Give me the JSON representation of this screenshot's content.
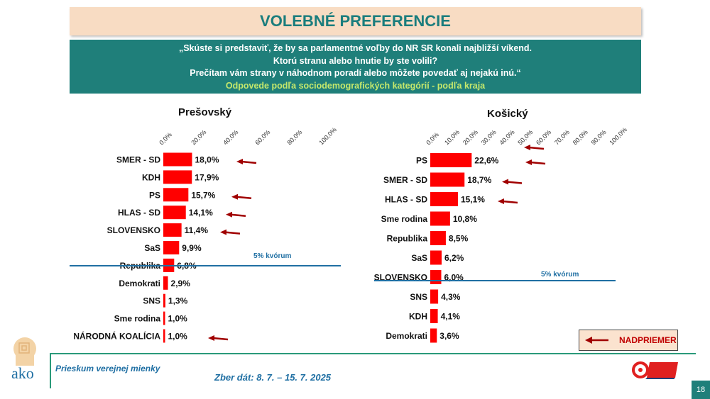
{
  "header": {
    "title": "VOLEBNÉ PREFERENCIE"
  },
  "question": {
    "line1": "„Skúste si predstaviť, že by sa parlamentné voľby do NR SR konali najbližší víkend.",
    "line2": "Ktorú stranu alebo hnutie by ste volili?",
    "line3": "Prečítam vám strany v náhodnom poradí alebo môžete povedať aj nejakú inú.“",
    "subtitle": "Odpovede podľa sociodemografických kategórií - podľa kraja"
  },
  "chart_data": [
    {
      "type": "bar",
      "orientation": "horizontal",
      "title": "Prešovský",
      "categories": [
        "SMER - SD",
        "KDH",
        "PS",
        "HLAS - SD",
        "SLOVENSKO",
        "SaS",
        "Republika",
        "Demokrati",
        "SNS",
        "Sme rodina",
        "NÁRODNÁ KOALÍCIA"
      ],
      "values": [
        18.0,
        17.9,
        15.7,
        14.1,
        11.4,
        9.9,
        6.8,
        2.9,
        1.3,
        1.0,
        1.0
      ],
      "value_labels": [
        "18,0%",
        "17,9%",
        "15,7%",
        "14,1%",
        "11,4%",
        "9,9%",
        "6,8%",
        "2,9%",
        "1,3%",
        "1,0%",
        "1,0%"
      ],
      "above_average": [
        "SMER - SD",
        "PS",
        "HLAS - SD",
        "SLOVENSKO",
        "NÁRODNÁ KOALÍCIA"
      ],
      "ticks": [
        "0,0%",
        "20,0%",
        "40,0%",
        "60,0%",
        "80,0%",
        "100,0%"
      ],
      "xlim": [
        0,
        100
      ],
      "quorum_label": "5% kvórum",
      "quorum_value": 5
    },
    {
      "type": "bar",
      "orientation": "horizontal",
      "title": "Košický",
      "categories": [
        "PS",
        "SMER - SD",
        "HLAS - SD",
        "Sme rodina",
        "Republika",
        "SaS",
        "SLOVENSKO",
        "SNS",
        "KDH",
        "Demokrati"
      ],
      "values": [
        22.6,
        18.7,
        15.1,
        10.8,
        8.5,
        6.2,
        6.0,
        4.3,
        4.1,
        3.6
      ],
      "value_labels": [
        "22,6%",
        "18,7%",
        "15,1%",
        "10,8%",
        "8,5%",
        "6,2%",
        "6,0%",
        "4,3%",
        "4,1%",
        "3,6%"
      ],
      "above_average": [
        "PS",
        "SMER - SD",
        "HLAS - SD"
      ],
      "ticks": [
        "0,0%",
        "10,0%",
        "20,0%",
        "30,0%",
        "40,0%",
        "50,0%",
        "60,0%",
        "70,0%",
        "80,0%",
        "90,0%",
        "100,0%"
      ],
      "xlim": [
        0,
        100
      ],
      "quorum_label": "5% kvórum",
      "quorum_value": 5
    }
  ],
  "legend": {
    "label": "NADPRIEMER"
  },
  "footer": {
    "survey": "Prieskum verejnej mienky",
    "dates": "Zber dát: 8. 7. – 15. 7. 2025",
    "page": "18"
  },
  "colors": {
    "bar": "#ff0000",
    "arrow": "#a00000",
    "quorum": "#1f6fa3",
    "teal": "#1f7f7a"
  }
}
